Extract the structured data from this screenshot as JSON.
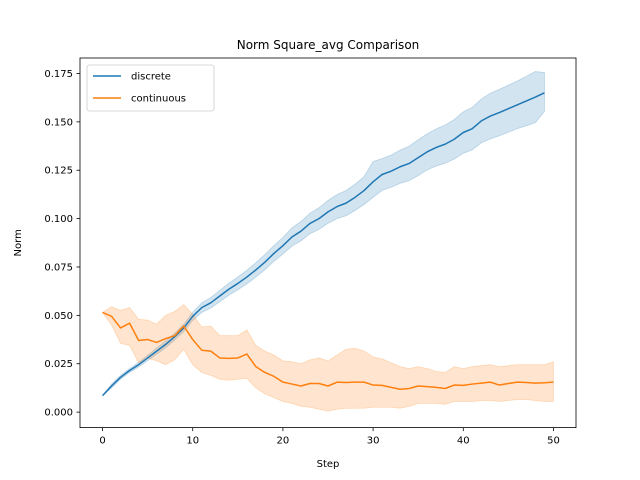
{
  "chart_data": {
    "type": "line",
    "title": "Norm Square_avg Comparison",
    "xlabel": "Step",
    "ylabel": "Norm",
    "xlim": [
      -2.5,
      52.5
    ],
    "ylim": [
      -0.008,
      0.183
    ],
    "xticks": [
      0,
      10,
      20,
      30,
      40,
      50
    ],
    "yticks": [
      0.0,
      0.025,
      0.05,
      0.075,
      0.1,
      0.125,
      0.15,
      0.175
    ],
    "ytick_labels": [
      "0.000",
      "0.025",
      "0.050",
      "0.075",
      "0.100",
      "0.125",
      "0.150",
      "0.175"
    ],
    "legend_position": "upper-left",
    "grid": false,
    "series": [
      {
        "name": "discrete",
        "color": "#1f77b4",
        "x": [
          0,
          1,
          2,
          3,
          4,
          5,
          6,
          7,
          8,
          9,
          10,
          11,
          12,
          13,
          14,
          15,
          16,
          17,
          18,
          19,
          20,
          21,
          22,
          23,
          24,
          25,
          26,
          27,
          28,
          29,
          30,
          31,
          32,
          33,
          34,
          35,
          36,
          37,
          38,
          39,
          40,
          41,
          42,
          43,
          44,
          45,
          46,
          47,
          48,
          49
        ],
        "y": [
          0.0085,
          0.0135,
          0.018,
          0.0215,
          0.0245,
          0.028,
          0.0315,
          0.035,
          0.039,
          0.0435,
          0.0495,
          0.054,
          0.0565,
          0.06,
          0.0635,
          0.0665,
          0.0698,
          0.0735,
          0.0775,
          0.082,
          0.086,
          0.0905,
          0.0935,
          0.0975,
          0.1,
          0.1035,
          0.1062,
          0.108,
          0.111,
          0.1145,
          0.119,
          0.1228,
          0.1245,
          0.1268,
          0.1285,
          0.1315,
          0.1345,
          0.1368,
          0.1385,
          0.141,
          0.1445,
          0.1465,
          0.1505,
          0.153,
          0.1548,
          0.1568,
          0.1588,
          0.1608,
          0.1628,
          0.165
        ],
        "lower": [
          0.0085,
          0.0125,
          0.017,
          0.0205,
          0.0233,
          0.0266,
          0.0299,
          0.0332,
          0.0372,
          0.0416,
          0.0474,
          0.0515,
          0.0538,
          0.0571,
          0.0604,
          0.0632,
          0.0663,
          0.0698,
          0.0736,
          0.0779,
          0.0817,
          0.0858,
          0.0885,
          0.0922,
          0.0944,
          0.0976,
          0.1,
          0.1015,
          0.1042,
          0.1073,
          0.111,
          0.1146,
          0.1162,
          0.1182,
          0.1196,
          0.1222,
          0.1252,
          0.1272,
          0.1286,
          0.1308,
          0.1338,
          0.1355,
          0.1392,
          0.1412,
          0.1428,
          0.1446,
          0.1465,
          0.148,
          0.1496,
          0.1555
        ],
        "upper": [
          0.0085,
          0.0145,
          0.019,
          0.0225,
          0.0257,
          0.0294,
          0.0331,
          0.0368,
          0.0408,
          0.0454,
          0.0516,
          0.0565,
          0.0592,
          0.0629,
          0.0666,
          0.0698,
          0.0733,
          0.0772,
          0.0814,
          0.0861,
          0.0903,
          0.0952,
          0.0985,
          0.1028,
          0.1056,
          0.1094,
          0.1124,
          0.1145,
          0.1178,
          0.1217,
          0.1295,
          0.131,
          0.1328,
          0.1354,
          0.1374,
          0.1408,
          0.1438,
          0.1464,
          0.1484,
          0.1512,
          0.1552,
          0.1575,
          0.1618,
          0.1648,
          0.1668,
          0.169,
          0.1711,
          0.1736,
          0.176,
          0.1755
        ]
      },
      {
        "name": "continuous",
        "color": "#ff7f0e",
        "x": [
          0,
          1,
          2,
          3,
          4,
          5,
          6,
          7,
          8,
          9,
          10,
          11,
          12,
          13,
          14,
          15,
          16,
          17,
          18,
          19,
          20,
          21,
          22,
          23,
          24,
          25,
          26,
          27,
          28,
          29,
          30,
          31,
          32,
          33,
          34,
          35,
          36,
          37,
          38,
          39,
          40,
          41,
          42,
          43,
          44,
          45,
          46,
          47,
          48,
          49,
          50
        ],
        "y": [
          0.0515,
          0.0495,
          0.0435,
          0.046,
          0.037,
          0.0375,
          0.036,
          0.038,
          0.0395,
          0.0445,
          0.0375,
          0.032,
          0.0315,
          0.028,
          0.0278,
          0.028,
          0.03,
          0.0235,
          0.0205,
          0.0185,
          0.0155,
          0.0145,
          0.0135,
          0.0148,
          0.0148,
          0.0135,
          0.0155,
          0.0153,
          0.0155,
          0.0155,
          0.014,
          0.0138,
          0.0128,
          0.0118,
          0.0122,
          0.0135,
          0.0132,
          0.0128,
          0.0122,
          0.014,
          0.0138,
          0.0145,
          0.015,
          0.0155,
          0.014,
          0.0148,
          0.0155,
          0.0153,
          0.015,
          0.0152,
          0.0155
        ],
        "lower": [
          0.0515,
          0.045,
          0.0355,
          0.0345,
          0.0255,
          0.028,
          0.0265,
          0.0245,
          0.027,
          0.0325,
          0.0245,
          0.0205,
          0.019,
          0.017,
          0.0165,
          0.017,
          0.0175,
          0.0125,
          0.0095,
          0.0075,
          0.0055,
          0.0045,
          0.003,
          0.0025,
          0.0015,
          0.0005,
          0.0015,
          0.002,
          0.002,
          0.002,
          0.0025,
          0.0025,
          0.0025,
          0.002,
          0.003,
          0.0045,
          0.0045,
          0.0045,
          0.004,
          0.0055,
          0.0055,
          0.0055,
          0.006,
          0.006,
          0.0055,
          0.006,
          0.0065,
          0.0065,
          0.006,
          0.0055,
          0.0055
        ],
        "upper": [
          0.0515,
          0.0545,
          0.0525,
          0.054,
          0.048,
          0.0475,
          0.0455,
          0.05,
          0.052,
          0.0555,
          0.0505,
          0.044,
          0.0445,
          0.0395,
          0.0395,
          0.0395,
          0.0425,
          0.0345,
          0.0315,
          0.0295,
          0.0265,
          0.026,
          0.025,
          0.027,
          0.028,
          0.0265,
          0.0295,
          0.0325,
          0.033,
          0.0315,
          0.0285,
          0.0275,
          0.0255,
          0.0235,
          0.0225,
          0.0235,
          0.0225,
          0.021,
          0.0205,
          0.0235,
          0.0225,
          0.0235,
          0.024,
          0.0245,
          0.0235,
          0.024,
          0.0245,
          0.0245,
          0.0245,
          0.0245,
          0.026
        ]
      }
    ]
  }
}
